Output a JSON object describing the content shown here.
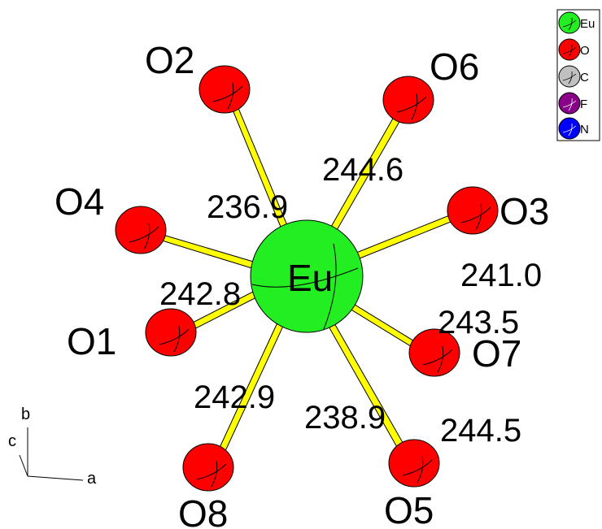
{
  "colors": {
    "eu": "#22ee22",
    "o": "#ff0000",
    "c": "#c0c0c0",
    "f": "#880088",
    "n": "#0000ff",
    "bond": "#ffff00",
    "outline": "#000000"
  },
  "central_atom": {
    "label": "Eu"
  },
  "ligands": [
    {
      "label": "O2",
      "bond_length": "236.9"
    },
    {
      "label": "O6",
      "bond_length": "244.6"
    },
    {
      "label": "O4",
      "bond_length": ""
    },
    {
      "label": "O3",
      "bond_length": "241.0"
    },
    {
      "label": "O1",
      "bond_length": "242.8"
    },
    {
      "label": "O7",
      "bond_length": "243.5"
    },
    {
      "label": "O8",
      "bond_length": "242.9"
    },
    {
      "label": "O5",
      "bond_length": "238.9"
    }
  ],
  "extra_bond_label": "244.5",
  "axes": {
    "a": "a",
    "b": "b",
    "c": "c"
  },
  "legend": [
    {
      "label": "Eu",
      "color": "#22ee22"
    },
    {
      "label": "O",
      "color": "#ff0000"
    },
    {
      "label": "C",
      "color": "#c0c0c0"
    },
    {
      "label": "F",
      "color": "#880088"
    },
    {
      "label": "N",
      "color": "#0000ff"
    }
  ]
}
